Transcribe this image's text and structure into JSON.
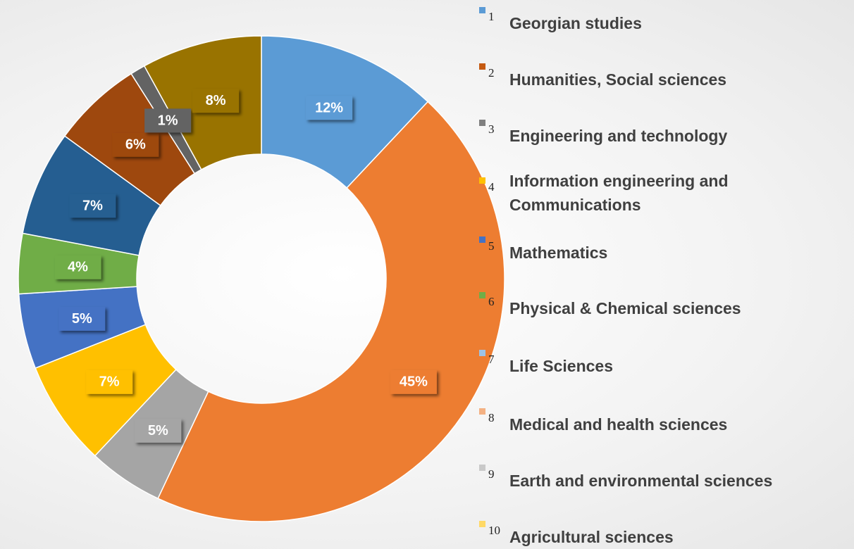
{
  "chart_data": {
    "type": "donut",
    "values": [
      12,
      45,
      5,
      7,
      5,
      4,
      7,
      6,
      1,
      8
    ],
    "value_labels": [
      "12%",
      "45%",
      "5%",
      "7%",
      "5%",
      "4%",
      "7%",
      "6%",
      "1%",
      "8%"
    ],
    "colors": [
      "#5b9bd5",
      "#ed7d31",
      "#a5a5a5",
      "#ffc000",
      "#4472c4",
      "#70ad47",
      "#255e91",
      "#9e480e",
      "#636363",
      "#997300"
    ],
    "legend": [
      {
        "number": 1,
        "label": "Georgian studies",
        "color": "#5b9bd5"
      },
      {
        "number": 2,
        "label": "Humanities, Social sciences",
        "color": "#c55a11"
      },
      {
        "number": 3,
        "label": "Engineering and technology",
        "color": "#7f7f7f"
      },
      {
        "number": 4,
        "label": "Information engineering and Communications",
        "color": "#ffc000"
      },
      {
        "number": 5,
        "label": "Mathematics",
        "color": "#4472c4"
      },
      {
        "number": 6,
        "label": "Physical & Chemical sciences",
        "color": "#70ad47"
      },
      {
        "number": 7,
        "label": "Life Sciences",
        "color": "#9dc3e6"
      },
      {
        "number": 8,
        "label": "Medical and health sciences",
        "color": "#f4b183"
      },
      {
        "number": 9,
        "label": "Earth and environmental sciences",
        "color": "#c9c9c9"
      },
      {
        "number": 10,
        "label": "Agricultural sciences",
        "color": "#ffd966"
      }
    ]
  }
}
